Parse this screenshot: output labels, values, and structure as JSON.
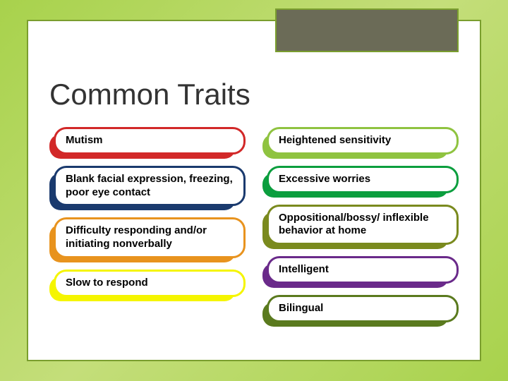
{
  "title": "Common Traits",
  "colors": {
    "red": "#d22828",
    "darkblue": "#1a3a6e",
    "orange": "#e8931e",
    "yellow": "#f5f500",
    "limegreen": "#8fc340",
    "green": "#0b9e3e",
    "olive": "#7a8a1e",
    "purple": "#6a2a8a",
    "olivegreen": "#5a7a1e"
  },
  "left_traits": [
    {
      "text": "Mutism",
      "color_key": "red"
    },
    {
      "text": "Blank facial expression, freezing, poor eye contact",
      "color_key": "darkblue",
      "multi": true
    },
    {
      "text": "Difficulty responding and/or initiating nonverbally",
      "color_key": "orange",
      "multi": true
    },
    {
      "text": "Slow to respond",
      "color_key": "yellow"
    }
  ],
  "right_traits": [
    {
      "text": "Heightened sensitivity",
      "color_key": "limegreen"
    },
    {
      "text": "Excessive worries",
      "color_key": "green"
    },
    {
      "text": "Oppositional/bossy/ inflexible behavior at home",
      "color_key": "olive",
      "multi": true
    },
    {
      "text": "Intelligent",
      "color_key": "purple"
    },
    {
      "text": "Bilingual",
      "color_key": "olivegreen"
    }
  ]
}
